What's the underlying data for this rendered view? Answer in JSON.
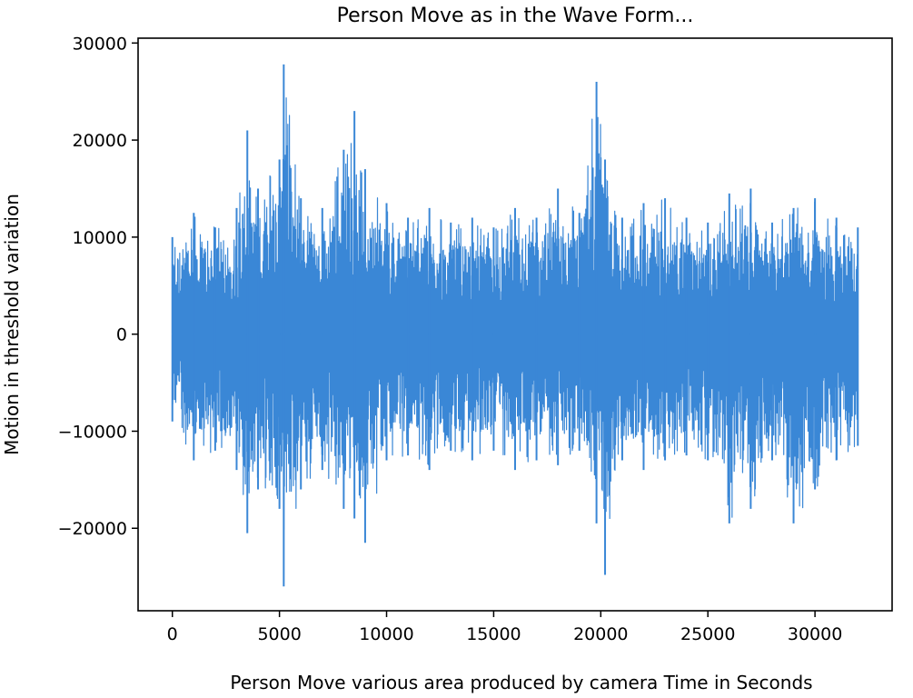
{
  "chart_data": {
    "type": "line",
    "title": "Person Move as in the Wave Form...",
    "xlabel": "Person Move various area produced by camera Time in Seconds",
    "ylabel": "Motion in threshold variation",
    "xlim": [
      -1600,
      33600
    ],
    "ylim": [
      -28500,
      30500
    ],
    "x_ticks": [
      0,
      5000,
      10000,
      15000,
      20000,
      25000,
      30000
    ],
    "y_ticks": [
      30000,
      20000,
      10000,
      0,
      -10000,
      -20000
    ],
    "x_tick_labels": [
      "0",
      "5000",
      "10000",
      "15000",
      "20000",
      "25000",
      "30000"
    ],
    "y_tick_labels": [
      "30000",
      "20000",
      "10000",
      "0",
      "−10000",
      "−20000"
    ],
    "grid": false,
    "series": [
      {
        "color": "#3a87d6",
        "sample_count": 32000,
        "envelope_x": [
          0,
          1000,
          2000,
          3000,
          3500,
          4000,
          5000,
          5200,
          6000,
          7000,
          8000,
          8500,
          9000,
          10000,
          11000,
          12000,
          13000,
          14000,
          15000,
          16000,
          17000,
          18000,
          19000,
          19800,
          20200,
          21000,
          22000,
          23000,
          24000,
          25000,
          26000,
          27000,
          28000,
          29000,
          30000,
          31000,
          32000
        ],
        "envelope_upper": [
          10000,
          12500,
          11000,
          13000,
          21000,
          15000,
          18000,
          27800,
          14000,
          13000,
          19000,
          23000,
          17000,
          13500,
          12000,
          13000,
          11500,
          12000,
          11000,
          13000,
          12000,
          15000,
          12500,
          26000,
          18000,
          12000,
          13500,
          14000,
          12000,
          11500,
          14500,
          15000,
          11500,
          13000,
          14000,
          12000,
          11000
        ],
        "envelope_lower": [
          -9000,
          -13000,
          -12000,
          -14000,
          -20500,
          -16000,
          -18000,
          -26000,
          -16000,
          -14000,
          -18000,
          -19000,
          -21500,
          -13000,
          -12500,
          -14000,
          -12000,
          -13000,
          -12000,
          -14000,
          -13000,
          -13500,
          -12000,
          -19500,
          -24800,
          -13000,
          -14000,
          -13000,
          -12500,
          -13000,
          -19500,
          -18000,
          -13000,
          -19500,
          -16000,
          -13000,
          -11500
        ]
      }
    ]
  }
}
